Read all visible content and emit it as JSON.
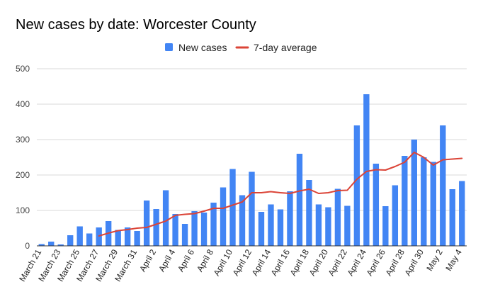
{
  "chart_data": {
    "type": "bar",
    "title": "New cases by date: Worcester County",
    "xlabel": "",
    "ylabel": "",
    "ylim": [
      0,
      500
    ],
    "yticks": [
      0,
      100,
      200,
      300,
      400,
      500
    ],
    "grid": true,
    "legend_position": "top-center",
    "categories": [
      "March 21",
      "March 22",
      "March 23",
      "March 24",
      "March 25",
      "March 26",
      "March 27",
      "March 28",
      "March 29",
      "March 30",
      "March 31",
      "April 1",
      "April 2",
      "April 3",
      "April 4",
      "April 5",
      "April 6",
      "April 7",
      "April 8",
      "April 9",
      "April 10",
      "April 11",
      "April 12",
      "April 13",
      "April 14",
      "April 15",
      "April 16",
      "April 17",
      "April 18",
      "April 19",
      "April 20",
      "April 21",
      "April 22",
      "April 23",
      "April 24",
      "April 25",
      "April 26",
      "April 27",
      "April 28",
      "April 29",
      "April 30",
      "May 1",
      "May 2",
      "May 3",
      "May 4"
    ],
    "x_tick_labels": [
      "March 21",
      "",
      "March 23",
      "",
      "March 25",
      "",
      "March 27",
      "",
      "March 29",
      "",
      "March 31",
      "",
      "April 2",
      "",
      "April 4",
      "",
      "April 6",
      "",
      "April 8",
      "",
      "April 10",
      "",
      "April 12",
      "",
      "April 14",
      "",
      "April 16",
      "",
      "April 18",
      "",
      "April 20",
      "",
      "April 22",
      "",
      "April 24",
      "",
      "April 26",
      "",
      "April 28",
      "",
      "April 30",
      "",
      "May 2",
      "",
      "May 4"
    ],
    "series": [
      {
        "name": "New cases",
        "type": "bar",
        "color": "#4285f4",
        "values": [
          5,
          12,
          4,
          30,
          55,
          35,
          52,
          70,
          45,
          52,
          42,
          128,
          104,
          157,
          90,
          62,
          98,
          94,
          122,
          165,
          217,
          143,
          209,
          96,
          117,
          103,
          154,
          260,
          186,
          117,
          109,
          161,
          113,
          340,
          428,
          232,
          112,
          171,
          254,
          300,
          250,
          237,
          340,
          160,
          183
        ]
      },
      {
        "name": "7-day average",
        "type": "line",
        "color": "#db4437",
        "values": [
          null,
          null,
          null,
          null,
          null,
          null,
          28,
          36,
          43,
          46,
          50,
          52,
          61,
          70,
          86,
          89,
          91,
          98,
          106,
          106,
          115,
          124,
          150,
          150,
          153,
          150,
          148,
          155,
          160,
          148,
          150,
          156,
          157,
          188,
          210,
          215,
          214,
          224,
          236,
          264,
          250,
          228,
          243,
          245,
          247
        ]
      }
    ]
  }
}
